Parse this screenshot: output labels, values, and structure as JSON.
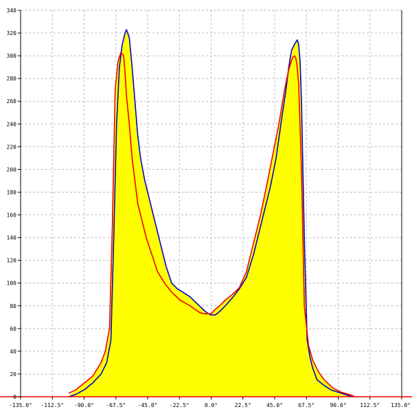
{
  "chart_data": {
    "type": "area",
    "title": "",
    "xlabel": "",
    "ylabel": "",
    "xlim": [
      -135,
      135
    ],
    "ylim": [
      0,
      340
    ],
    "grid": true,
    "x_ticks": [
      -135,
      -112.5,
      -90,
      -67.5,
      -45,
      -22.5,
      0,
      22.5,
      45,
      67.5,
      90,
      112.5,
      135
    ],
    "x_tick_labels": [
      "-135.0°",
      "-112.5°",
      "-90.0°",
      "-67.5°",
      "-45.0°",
      "-22.5°",
      "0.0°",
      "22.5°",
      "45.0°",
      "67.5°",
      "90.0°",
      "112.5°",
      "135.0°"
    ],
    "y_ticks": [
      0,
      20,
      40,
      60,
      80,
      100,
      120,
      140,
      160,
      180,
      200,
      220,
      240,
      260,
      280,
      300,
      320,
      340
    ],
    "y_tick_labels": [
      "0",
      "20",
      "40",
      "60",
      "80",
      "100",
      "120",
      "140",
      "160",
      "180",
      "200",
      "220",
      "240",
      "260",
      "280",
      "300",
      "320",
      "340"
    ],
    "series": [
      {
        "color": "#0000cc",
        "x": [
          -101,
          -96,
          -90,
          -84,
          -78,
          -74,
          -71,
          -69,
          -67,
          -65,
          -63,
          -61,
          -60,
          -58,
          -56,
          -54,
          -52,
          -50,
          -47,
          -44,
          -40,
          -36,
          -32,
          -28,
          -24,
          -20,
          -15,
          -10,
          -5,
          -2,
          0,
          3,
          6,
          10,
          15,
          20,
          25,
          30,
          35,
          38,
          42,
          46,
          50,
          53,
          55,
          57,
          59,
          61,
          62,
          63,
          64,
          66,
          68,
          70,
          72,
          75,
          80,
          85,
          90,
          95,
          100
        ],
        "y": [
          0,
          2,
          6,
          12,
          20,
          30,
          50,
          140,
          240,
          290,
          310,
          320,
          323,
          316,
          290,
          260,
          230,
          210,
          190,
          175,
          155,
          135,
          115,
          100,
          95,
          92,
          88,
          82,
          76,
          73,
          72,
          72,
          75,
          80,
          87,
          95,
          105,
          125,
          150,
          165,
          185,
          210,
          245,
          270,
          290,
          305,
          310,
          314,
          310,
          295,
          260,
          140,
          50,
          35,
          25,
          15,
          10,
          6,
          4,
          2,
          0
        ]
      },
      {
        "color": "#ee0000",
        "x": [
          -101,
          -96,
          -90,
          -84,
          -78,
          -75,
          -72,
          -70,
          -68,
          -66,
          -64,
          -62,
          -61,
          -60,
          -58,
          -56,
          -54,
          -52,
          -49,
          -46,
          -42,
          -38,
          -33,
          -28,
          -22,
          -15,
          -8,
          -5,
          -2,
          0,
          3,
          6,
          10,
          15,
          20,
          25,
          30,
          35,
          40,
          44,
          48,
          52,
          55,
          57,
          58,
          59,
          60,
          61,
          62,
          64,
          66,
          69,
          72,
          76,
          80,
          86,
          92,
          98,
          102
        ],
        "y": [
          3,
          6,
          12,
          18,
          30,
          40,
          60,
          150,
          270,
          295,
          303,
          300,
          285,
          265,
          240,
          210,
          190,
          170,
          155,
          140,
          125,
          110,
          100,
          92,
          85,
          80,
          74,
          73,
          73,
          73,
          77,
          80,
          85,
          90,
          96,
          110,
          135,
          160,
          190,
          215,
          240,
          270,
          288,
          296,
          299,
          300,
          298,
          290,
          275,
          200,
          80,
          45,
          32,
          22,
          15,
          8,
          4,
          2,
          0
        ]
      }
    ]
  },
  "colors": {
    "fill": "#ffff00",
    "grid": "#bbbbbb",
    "axis": "#000000",
    "baseline": "#ee0000"
  }
}
